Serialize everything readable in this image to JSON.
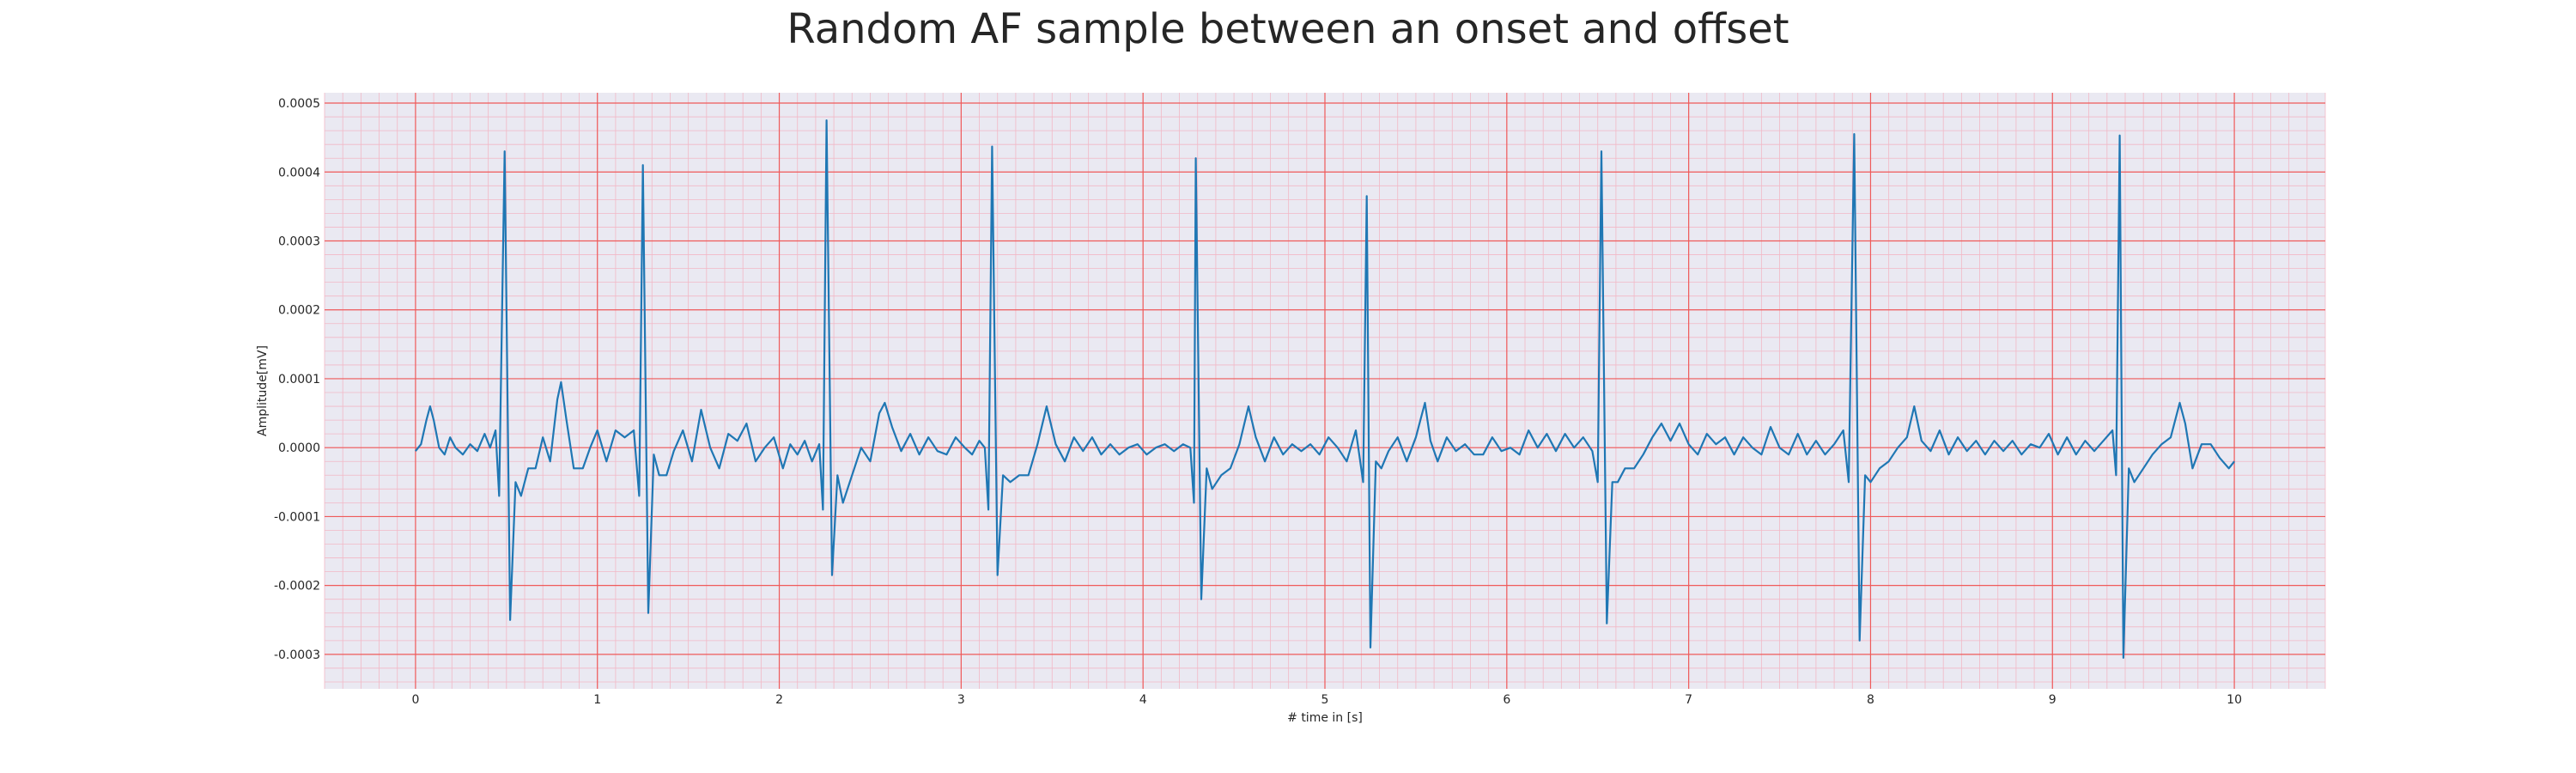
{
  "chart_data": {
    "type": "line",
    "title": "Random AF sample between an onset and offset",
    "xlabel": "# time in [s]",
    "ylabel": "Amplitude[mV]",
    "xlim": [
      -0.5,
      10.5
    ],
    "ylim": [
      -0.00035,
      0.000515
    ],
    "xticks": [
      0,
      1,
      2,
      3,
      4,
      5,
      6,
      7,
      8,
      9,
      10
    ],
    "xtick_labels": [
      "0",
      "1",
      "2",
      "3",
      "4",
      "5",
      "6",
      "7",
      "8",
      "9",
      "10"
    ],
    "yticks": [
      -0.0003,
      -0.0002,
      -0.0001,
      0,
      0.0001,
      0.0002,
      0.0003,
      0.0004,
      0.0005
    ],
    "ytick_labels": [
      "-0.0003",
      "-0.0002",
      "-0.0001",
      "0.0000",
      "0.0001",
      "0.0002",
      "0.0003",
      "0.0004",
      "0.0005"
    ],
    "grid": true,
    "minor_grid": true,
    "series": [
      {
        "color": "#1f77b4",
        "r_peaks": [
          {
            "t": 0.49,
            "r": 0.00043,
            "s": -0.00025
          },
          {
            "t": 1.25,
            "r": 0.00041,
            "s": -0.00024
          },
          {
            "t": 2.26,
            "r": 0.000475,
            "s": -0.000185
          },
          {
            "t": 3.17,
            "r": 0.000437,
            "s": -0.000185
          },
          {
            "t": 4.29,
            "r": 0.00042,
            "s": -0.00022
          },
          {
            "t": 5.23,
            "r": 0.000365,
            "s": -0.00029
          },
          {
            "t": 6.52,
            "r": 0.00043,
            "s": -0.000255
          },
          {
            "t": 7.91,
            "r": 0.000455,
            "s": -0.00028
          },
          {
            "t": 9.37,
            "r": 0.000453,
            "s": -0.000305
          }
        ],
        "points": [
          [
            0.0,
            -5e-06
          ],
          [
            0.03,
            5e-06
          ],
          [
            0.06,
            4e-05
          ],
          [
            0.08,
            6e-05
          ],
          [
            0.1,
            4e-05
          ],
          [
            0.13,
            0.0
          ],
          [
            0.16,
            -1e-05
          ],
          [
            0.19,
            1.5e-05
          ],
          [
            0.22,
            0.0
          ],
          [
            0.26,
            -1e-05
          ],
          [
            0.3,
            5e-06
          ],
          [
            0.34,
            -5e-06
          ],
          [
            0.38,
            2e-05
          ],
          [
            0.41,
            0.0
          ],
          [
            0.44,
            2.5e-05
          ],
          [
            0.46,
            -7e-05
          ],
          [
            0.49,
            0.00043
          ],
          [
            0.52,
            -0.00025
          ],
          [
            0.55,
            -5e-05
          ],
          [
            0.58,
            -7e-05
          ],
          [
            0.62,
            -3e-05
          ],
          [
            0.66,
            -3e-05
          ],
          [
            0.7,
            1.5e-05
          ],
          [
            0.74,
            -2e-05
          ],
          [
            0.78,
            7e-05
          ],
          [
            0.8,
            9.5e-05
          ],
          [
            0.83,
            4e-05
          ],
          [
            0.87,
            -3e-05
          ],
          [
            0.92,
            -3e-05
          ],
          [
            0.96,
            0.0
          ],
          [
            1.0,
            2.5e-05
          ],
          [
            1.05,
            -2e-05
          ],
          [
            1.1,
            2.5e-05
          ],
          [
            1.15,
            1.5e-05
          ],
          [
            1.2,
            2.5e-05
          ],
          [
            1.23,
            -7e-05
          ],
          [
            1.25,
            0.00041
          ],
          [
            1.28,
            -0.00024
          ],
          [
            1.31,
            -1e-05
          ],
          [
            1.34,
            -4e-05
          ],
          [
            1.38,
            -4e-05
          ],
          [
            1.42,
            -5e-06
          ],
          [
            1.47,
            2.5e-05
          ],
          [
            1.52,
            -2e-05
          ],
          [
            1.57,
            5.5e-05
          ],
          [
            1.62,
            0.0
          ],
          [
            1.67,
            -3e-05
          ],
          [
            1.72,
            2e-05
          ],
          [
            1.77,
            1e-05
          ],
          [
            1.82,
            3.5e-05
          ],
          [
            1.87,
            -2e-05
          ],
          [
            1.92,
            0.0
          ],
          [
            1.97,
            1.5e-05
          ],
          [
            2.02,
            -3e-05
          ],
          [
            2.06,
            5e-06
          ],
          [
            2.1,
            -1e-05
          ],
          [
            2.14,
            1e-05
          ],
          [
            2.18,
            -2e-05
          ],
          [
            2.22,
            5e-06
          ],
          [
            2.24,
            -9e-05
          ],
          [
            2.26,
            0.000475
          ],
          [
            2.29,
            -0.000185
          ],
          [
            2.32,
            -4e-05
          ],
          [
            2.35,
            -8e-05
          ],
          [
            2.4,
            -4e-05
          ],
          [
            2.45,
            0.0
          ],
          [
            2.5,
            -2e-05
          ],
          [
            2.55,
            5e-05
          ],
          [
            2.58,
            6.5e-05
          ],
          [
            2.62,
            3e-05
          ],
          [
            2.67,
            -5e-06
          ],
          [
            2.72,
            2e-05
          ],
          [
            2.77,
            -1e-05
          ],
          [
            2.82,
            1.5e-05
          ],
          [
            2.87,
            -5e-06
          ],
          [
            2.92,
            -1e-05
          ],
          [
            2.97,
            1.5e-05
          ],
          [
            3.02,
            0.0
          ],
          [
            3.06,
            -1e-05
          ],
          [
            3.1,
            1e-05
          ],
          [
            3.13,
            0.0
          ],
          [
            3.15,
            -9e-05
          ],
          [
            3.17,
            0.000437
          ],
          [
            3.2,
            -0.000185
          ],
          [
            3.23,
            -4e-05
          ],
          [
            3.27,
            -5e-05
          ],
          [
            3.32,
            -4e-05
          ],
          [
            3.37,
            -4e-05
          ],
          [
            3.42,
            5e-06
          ],
          [
            3.47,
            6e-05
          ],
          [
            3.52,
            5e-06
          ],
          [
            3.57,
            -2e-05
          ],
          [
            3.62,
            1.5e-05
          ],
          [
            3.67,
            -5e-06
          ],
          [
            3.72,
            1.5e-05
          ],
          [
            3.77,
            -1e-05
          ],
          [
            3.82,
            5e-06
          ],
          [
            3.87,
            -1e-05
          ],
          [
            3.92,
            0.0
          ],
          [
            3.97,
            5e-06
          ],
          [
            4.02,
            -1e-05
          ],
          [
            4.07,
            0.0
          ],
          [
            4.12,
            5e-06
          ],
          [
            4.17,
            -5e-06
          ],
          [
            4.22,
            5e-06
          ],
          [
            4.26,
            0.0
          ],
          [
            4.28,
            -8e-05
          ],
          [
            4.29,
            0.00042
          ],
          [
            4.32,
            -0.00022
          ],
          [
            4.35,
            -3e-05
          ],
          [
            4.38,
            -6e-05
          ],
          [
            4.43,
            -4e-05
          ],
          [
            4.48,
            -3e-05
          ],
          [
            4.53,
            5e-06
          ],
          [
            4.58,
            6e-05
          ],
          [
            4.62,
            1.5e-05
          ],
          [
            4.67,
            -2e-05
          ],
          [
            4.72,
            1.5e-05
          ],
          [
            4.77,
            -1e-05
          ],
          [
            4.82,
            5e-06
          ],
          [
            4.87,
            -5e-06
          ],
          [
            4.92,
            5e-06
          ],
          [
            4.97,
            -1e-05
          ],
          [
            5.02,
            1.5e-05
          ],
          [
            5.07,
            0.0
          ],
          [
            5.12,
            -2e-05
          ],
          [
            5.17,
            2.5e-05
          ],
          [
            5.21,
            -5e-05
          ],
          [
            5.23,
            0.000365
          ],
          [
            5.25,
            -0.00029
          ],
          [
            5.28,
            -2e-05
          ],
          [
            5.31,
            -3e-05
          ],
          [
            5.35,
            -5e-06
          ],
          [
            5.4,
            1.5e-05
          ],
          [
            5.45,
            -2e-05
          ],
          [
            5.5,
            1.5e-05
          ],
          [
            5.55,
            6.5e-05
          ],
          [
            5.58,
            1e-05
          ],
          [
            5.62,
            -2e-05
          ],
          [
            5.67,
            1.5e-05
          ],
          [
            5.72,
            -5e-06
          ],
          [
            5.77,
            5e-06
          ],
          [
            5.82,
            -1e-05
          ],
          [
            5.87,
            -1e-05
          ],
          [
            5.92,
            1.5e-05
          ],
          [
            5.97,
            -5e-06
          ],
          [
            6.02,
            0.0
          ],
          [
            6.07,
            -1e-05
          ],
          [
            6.12,
            2.5e-05
          ],
          [
            6.17,
            0.0
          ],
          [
            6.22,
            2e-05
          ],
          [
            6.27,
            -5e-06
          ],
          [
            6.32,
            2e-05
          ],
          [
            6.37,
            0.0
          ],
          [
            6.42,
            1.5e-05
          ],
          [
            6.47,
            -5e-06
          ],
          [
            6.5,
            -5e-05
          ],
          [
            6.52,
            0.00043
          ],
          [
            6.55,
            -0.000255
          ],
          [
            6.58,
            -5e-05
          ],
          [
            6.61,
            -5e-05
          ],
          [
            6.65,
            -3e-05
          ],
          [
            6.7,
            -3e-05
          ],
          [
            6.75,
            -1e-05
          ],
          [
            6.8,
            1.5e-05
          ],
          [
            6.85,
            3.5e-05
          ],
          [
            6.9,
            1e-05
          ],
          [
            6.95,
            3.5e-05
          ],
          [
            7.0,
            5e-06
          ],
          [
            7.05,
            -1e-05
          ],
          [
            7.1,
            2e-05
          ],
          [
            7.15,
            5e-06
          ],
          [
            7.2,
            1.5e-05
          ],
          [
            7.25,
            -1e-05
          ],
          [
            7.3,
            1.5e-05
          ],
          [
            7.35,
            0.0
          ],
          [
            7.4,
            -1e-05
          ],
          [
            7.45,
            3e-05
          ],
          [
            7.5,
            0.0
          ],
          [
            7.55,
            -1e-05
          ],
          [
            7.6,
            2e-05
          ],
          [
            7.65,
            -1e-05
          ],
          [
            7.7,
            1e-05
          ],
          [
            7.75,
            -1e-05
          ],
          [
            7.8,
            5e-06
          ],
          [
            7.85,
            2.5e-05
          ],
          [
            7.88,
            -5e-05
          ],
          [
            7.91,
            0.000455
          ],
          [
            7.94,
            -0.00028
          ],
          [
            7.97,
            -4e-05
          ],
          [
            8.0,
            -5e-05
          ],
          [
            8.05,
            -3e-05
          ],
          [
            8.1,
            -2e-05
          ],
          [
            8.15,
            0.0
          ],
          [
            8.2,
            1.5e-05
          ],
          [
            8.24,
            6e-05
          ],
          [
            8.28,
            1e-05
          ],
          [
            8.33,
            -5e-06
          ],
          [
            8.38,
            2.5e-05
          ],
          [
            8.43,
            -1e-05
          ],
          [
            8.48,
            1.5e-05
          ],
          [
            8.53,
            -5e-06
          ],
          [
            8.58,
            1e-05
          ],
          [
            8.63,
            -1e-05
          ],
          [
            8.68,
            1e-05
          ],
          [
            8.73,
            -5e-06
          ],
          [
            8.78,
            1e-05
          ],
          [
            8.83,
            -1e-05
          ],
          [
            8.88,
            5e-06
          ],
          [
            8.93,
            0.0
          ],
          [
            8.98,
            2e-05
          ],
          [
            9.03,
            -1e-05
          ],
          [
            9.08,
            1.5e-05
          ],
          [
            9.13,
            -1e-05
          ],
          [
            9.18,
            1e-05
          ],
          [
            9.23,
            -5e-06
          ],
          [
            9.28,
            1e-05
          ],
          [
            9.33,
            2.5e-05
          ],
          [
            9.35,
            -4e-05
          ],
          [
            9.37,
            0.000453
          ],
          [
            9.39,
            -0.000305
          ],
          [
            9.42,
            -3e-05
          ],
          [
            9.45,
            -5e-05
          ],
          [
            9.5,
            -3e-05
          ],
          [
            9.55,
            -1e-05
          ],
          [
            9.6,
            5e-06
          ],
          [
            9.65,
            1.5e-05
          ],
          [
            9.7,
            6.5e-05
          ],
          [
            9.73,
            3.5e-05
          ],
          [
            9.77,
            -3e-05
          ],
          [
            9.82,
            5e-06
          ],
          [
            9.87,
            5e-06
          ],
          [
            9.92,
            -1.5e-05
          ],
          [
            9.97,
            -3e-05
          ],
          [
            10.0,
            -2e-05
          ]
        ]
      }
    ]
  }
}
